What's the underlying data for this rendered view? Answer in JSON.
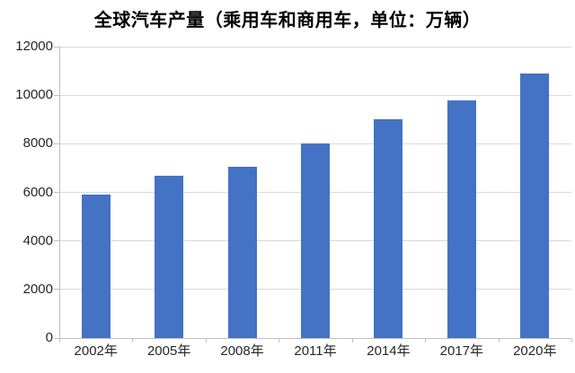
{
  "chart_data": {
    "type": "bar",
    "title": "全球汽车产量（乘用车和商用车，单位：万辆）",
    "categories": [
      "2002年",
      "2005年",
      "2008年",
      "2011年",
      "2014年",
      "2017年",
      "2020年"
    ],
    "values": [
      5900,
      6670,
      7070,
      8000,
      9000,
      9780,
      10890
    ],
    "xlabel": "",
    "ylabel": "",
    "ylim": [
      0,
      12000
    ],
    "ytick_interval": 2000,
    "ytick_labels": [
      "0",
      "2000",
      "4000",
      "6000",
      "8000",
      "10000",
      "12000"
    ],
    "grid": true,
    "legend": false,
    "colors": {
      "bar": "#4472C4",
      "gridline": "#D9D9D9",
      "axis": "#BFBFBF",
      "tick_label": "#262626",
      "title": "#000000",
      "background": "#FFFFFF"
    }
  }
}
